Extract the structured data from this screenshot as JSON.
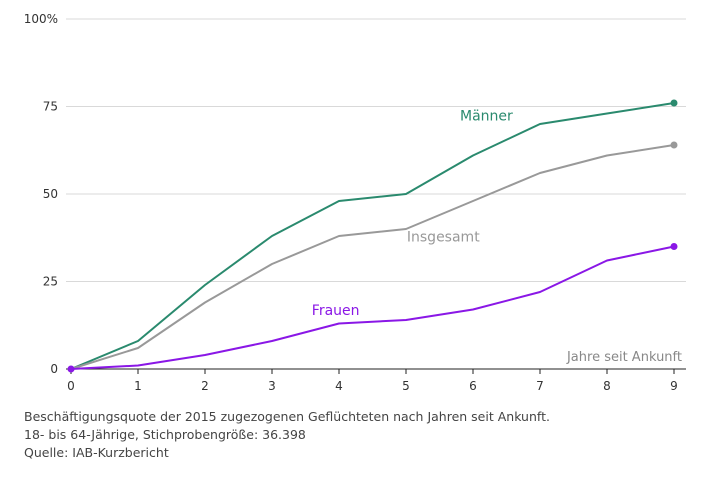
{
  "chart_data": {
    "type": "line",
    "x": [
      0,
      1,
      2,
      3,
      4,
      5,
      6,
      7,
      8,
      9
    ],
    "xlabel": "Jahre seit Ankunft",
    "ylabel": "",
    "ylim": [
      0,
      100
    ],
    "yticks": [
      0,
      25,
      50,
      75,
      100
    ],
    "ytick_labels": [
      "0",
      "25",
      "50",
      "75",
      "100%"
    ],
    "grid": true,
    "series": [
      {
        "name": "Männer",
        "color": "#2a8a6e",
        "values": [
          0,
          8,
          24,
          38,
          48,
          50,
          61,
          70,
          73,
          76
        ]
      },
      {
        "name": "Insgesamt",
        "color": "#999999",
        "values": [
          0,
          6,
          19,
          30,
          38,
          40,
          48,
          56,
          61,
          64
        ]
      },
      {
        "name": "Frauen",
        "color": "#8a17e6",
        "values": [
          0,
          1,
          4,
          8,
          13,
          14,
          17,
          22,
          31,
          35
        ]
      }
    ]
  },
  "caption": {
    "line1": "Beschäftigungsquote der 2015 zugezogenen Geflüchteten nach Jahren seit Ankunft.",
    "line2": "18- bis 64-Jährige, Stichprobengröße: 36.398",
    "line3": "Quelle: IAB-Kurzbericht"
  }
}
